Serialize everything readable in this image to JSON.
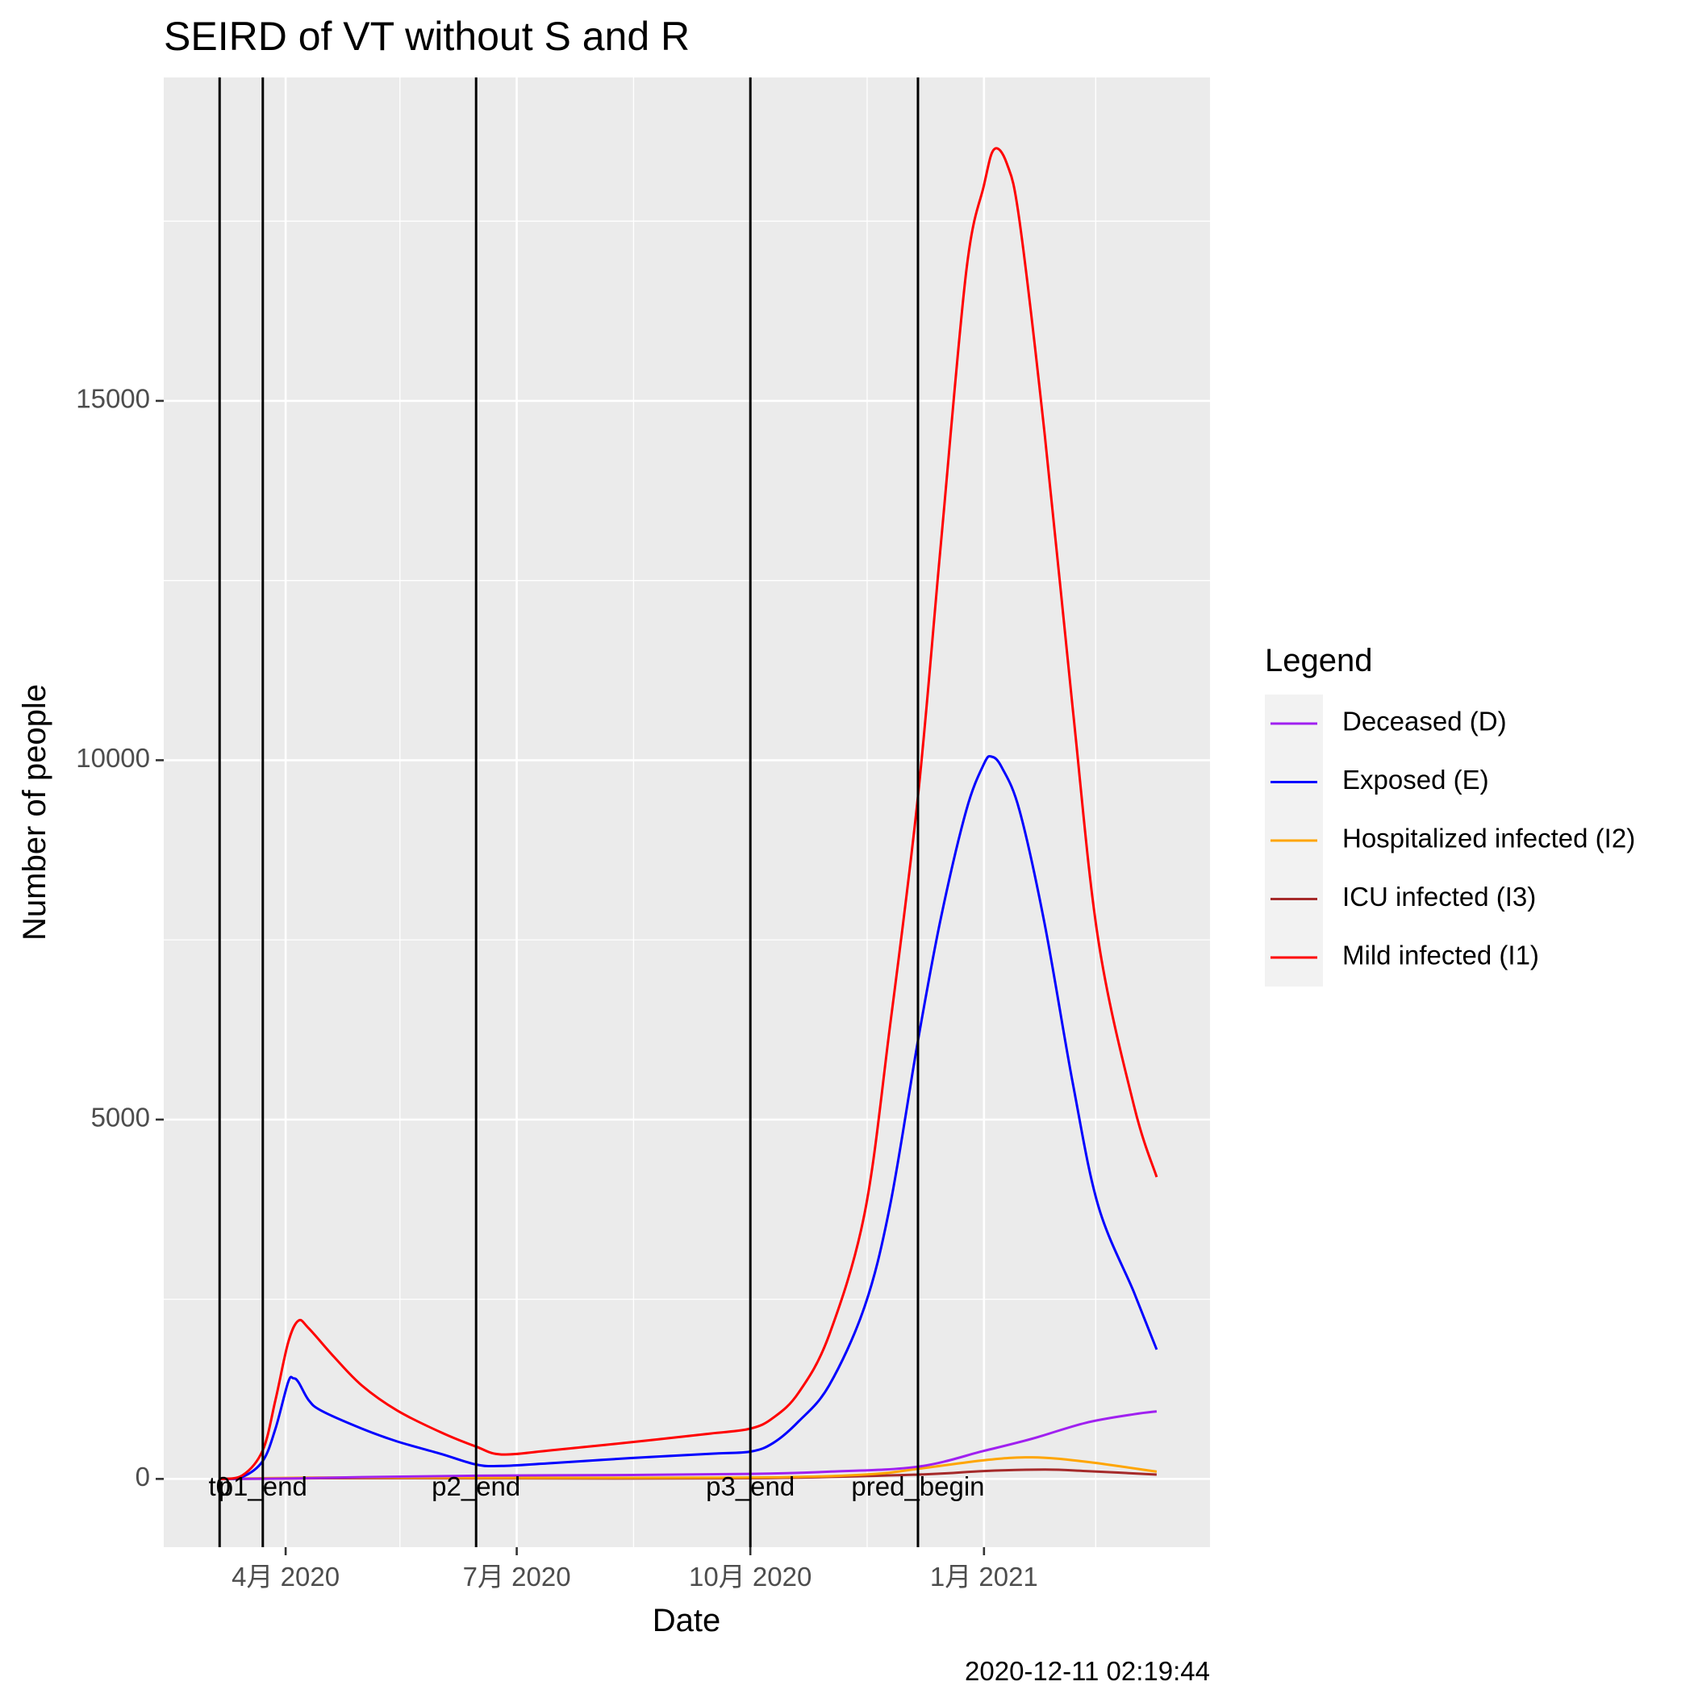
{
  "chart_data": {
    "type": "line",
    "title": "SEIRD of VT without S and R",
    "xlabel": "Date",
    "ylabel": "Number of people",
    "caption": "2020-12-11 02:19:44",
    "x_range": [
      "2020-02-13",
      "2021-03-31"
    ],
    "ylim": [
      -950,
      19500
    ],
    "grid": true,
    "background": "#ebebeb",
    "x_ticks": [
      {
        "date": "2020-04-01",
        "label": "4月 2020"
      },
      {
        "date": "2020-07-01",
        "label": "7月 2020"
      },
      {
        "date": "2020-10-01",
        "label": "10月 2020"
      },
      {
        "date": "2021-01-01",
        "label": "1月 2021"
      }
    ],
    "x_minor_ticks": [
      "2020-05-16",
      "2020-08-16",
      "2020-11-16",
      "2021-02-14"
    ],
    "y_ticks": [
      0,
      5000,
      10000,
      15000
    ],
    "y_minor_ticks": [
      2500,
      7500,
      12500,
      17500
    ],
    "vlines": [
      {
        "date": "2020-03-06",
        "label": "t0"
      },
      {
        "date": "2020-03-23",
        "label": "p1_end"
      },
      {
        "date": "2020-06-15",
        "label": "p2_end"
      },
      {
        "date": "2020-10-01",
        "label": "p3_end"
      },
      {
        "date": "2020-12-06",
        "label": "pred_begin"
      }
    ],
    "legend": {
      "title": "Legend",
      "position": "right"
    },
    "series": [
      {
        "name": "Deceased (D)",
        "color": "#a020f0",
        "points": [
          [
            "2020-03-06",
            0
          ],
          [
            "2020-04-01",
            5
          ],
          [
            "2020-05-01",
            25
          ],
          [
            "2020-06-15",
            45
          ],
          [
            "2020-08-15",
            55
          ],
          [
            "2020-10-01",
            70
          ],
          [
            "2020-11-01",
            100
          ],
          [
            "2020-12-06",
            170
          ],
          [
            "2021-01-01",
            390
          ],
          [
            "2021-01-20",
            560
          ],
          [
            "2021-02-10",
            780
          ],
          [
            "2021-03-01",
            900
          ],
          [
            "2021-03-10",
            940
          ]
        ]
      },
      {
        "name": "Exposed (E)",
        "color": "#0000ff",
        "points": [
          [
            "2020-03-06",
            0
          ],
          [
            "2020-03-15",
            30
          ],
          [
            "2020-03-23",
            250
          ],
          [
            "2020-03-28",
            700
          ],
          [
            "2020-04-02",
            1350
          ],
          [
            "2020-04-04",
            1400
          ],
          [
            "2020-04-06",
            1350
          ],
          [
            "2020-04-10",
            1100
          ],
          [
            "2020-04-15",
            950
          ],
          [
            "2020-05-01",
            700
          ],
          [
            "2020-05-15",
            520
          ],
          [
            "2020-06-01",
            350
          ],
          [
            "2020-06-15",
            200
          ],
          [
            "2020-06-25",
            180
          ],
          [
            "2020-07-15",
            220
          ],
          [
            "2020-08-15",
            290
          ],
          [
            "2020-09-15",
            350
          ],
          [
            "2020-10-01",
            380
          ],
          [
            "2020-10-10",
            500
          ],
          [
            "2020-10-20",
            800
          ],
          [
            "2020-11-01",
            1300
          ],
          [
            "2020-11-15",
            2400
          ],
          [
            "2020-11-25",
            3800
          ],
          [
            "2020-12-06",
            6100
          ],
          [
            "2020-12-15",
            7800
          ],
          [
            "2020-12-25",
            9300
          ],
          [
            "2021-01-01",
            9950
          ],
          [
            "2021-01-04",
            10050
          ],
          [
            "2021-01-08",
            9900
          ],
          [
            "2021-01-15",
            9300
          ],
          [
            "2021-01-25",
            7700
          ],
          [
            "2021-02-05",
            5500
          ],
          [
            "2021-02-15",
            3800
          ],
          [
            "2021-03-01",
            2600
          ],
          [
            "2021-03-10",
            1800
          ]
        ]
      },
      {
        "name": "Hospitalized infected (I2)",
        "color": "#ffa500",
        "points": [
          [
            "2020-03-06",
            0
          ],
          [
            "2020-04-15",
            20
          ],
          [
            "2020-06-15",
            15
          ],
          [
            "2020-10-01",
            20
          ],
          [
            "2020-11-15",
            60
          ],
          [
            "2020-12-06",
            140
          ],
          [
            "2021-01-01",
            260
          ],
          [
            "2021-01-20",
            300
          ],
          [
            "2021-02-10",
            240
          ],
          [
            "2021-03-10",
            100
          ]
        ]
      },
      {
        "name": "ICU infected (I3)",
        "color": "#a52a2a",
        "points": [
          [
            "2020-03-06",
            0
          ],
          [
            "2020-04-15",
            10
          ],
          [
            "2020-06-15",
            8
          ],
          [
            "2020-10-01",
            10
          ],
          [
            "2020-12-06",
            60
          ],
          [
            "2021-01-01",
            110
          ],
          [
            "2021-01-25",
            130
          ],
          [
            "2021-02-10",
            110
          ],
          [
            "2021-03-10",
            60
          ]
        ]
      },
      {
        "name": "Mild infected (I1)",
        "color": "#ff0000",
        "points": [
          [
            "2020-03-06",
            0
          ],
          [
            "2020-03-15",
            50
          ],
          [
            "2020-03-23",
            400
          ],
          [
            "2020-03-28",
            1100
          ],
          [
            "2020-04-02",
            1900
          ],
          [
            "2020-04-06",
            2200
          ],
          [
            "2020-04-10",
            2100
          ],
          [
            "2020-04-20",
            1700
          ],
          [
            "2020-05-01",
            1300
          ],
          [
            "2020-05-15",
            950
          ],
          [
            "2020-06-01",
            650
          ],
          [
            "2020-06-15",
            450
          ],
          [
            "2020-06-25",
            340
          ],
          [
            "2020-07-15",
            400
          ],
          [
            "2020-08-15",
            510
          ],
          [
            "2020-09-15",
            630
          ],
          [
            "2020-10-01",
            700
          ],
          [
            "2020-10-10",
            850
          ],
          [
            "2020-10-20",
            1200
          ],
          [
            "2020-11-01",
            2000
          ],
          [
            "2020-11-15",
            3700
          ],
          [
            "2020-11-25",
            6300
          ],
          [
            "2020-12-06",
            9500
          ],
          [
            "2020-12-15",
            13000
          ],
          [
            "2020-12-25",
            16800
          ],
          [
            "2021-01-01",
            18000
          ],
          [
            "2021-01-05",
            18500
          ],
          [
            "2021-01-10",
            18300
          ],
          [
            "2021-01-15",
            17500
          ],
          [
            "2021-01-25",
            14500
          ],
          [
            "2021-02-05",
            10700
          ],
          [
            "2021-02-15",
            7500
          ],
          [
            "2021-03-01",
            5200
          ],
          [
            "2021-03-10",
            4200
          ]
        ]
      }
    ]
  }
}
